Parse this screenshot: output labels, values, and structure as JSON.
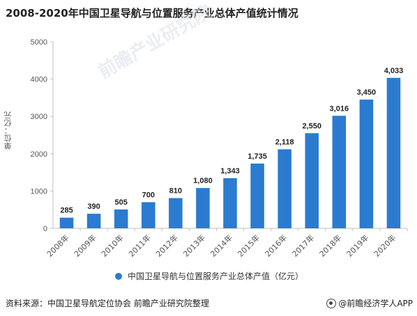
{
  "title": "2008-2020年中国卫星导航与位置服务产业总体产值统计情况",
  "source": "资料来源：中国卫星导航定位协会 前瞻产业研究院整理",
  "brand": "@前瞻经济学人APP",
  "watermark": "前瞻产业研究院",
  "colors": {
    "bar": "#2b7bd0",
    "axis": "#bfbfbf",
    "grid": "#d9d9d9"
  },
  "chart_data": {
    "type": "bar",
    "title": "2008-2020年中国卫星导航与位置服务产业总体产值统计情况",
    "ylabel": "单位：亿元",
    "xlabel": "",
    "ylim": [
      0,
      5000
    ],
    "yticks": [
      "0",
      "1000",
      "2000",
      "3000",
      "4000",
      "5000"
    ],
    "categories": [
      "2008年",
      "2009年",
      "2010年",
      "2011年",
      "2012年",
      "2013年",
      "2014年",
      "2015年",
      "2016年",
      "2017年",
      "2018年",
      "2019年",
      "2020年"
    ],
    "series": [
      {
        "name": "中国卫星导航与位置服务产业总体产值（亿元）",
        "values": [
          285,
          390,
          505,
          700,
          810,
          1080,
          1343,
          1735,
          2118,
          2550,
          3016,
          3450,
          4033
        ],
        "labels": [
          "285",
          "390",
          "505",
          "700",
          "810",
          "1,080",
          "1,343",
          "1,735",
          "2,118",
          "2,550",
          "3,016",
          "3,450",
          "4,033"
        ]
      }
    ],
    "legend": "bottom",
    "grid": false
  }
}
